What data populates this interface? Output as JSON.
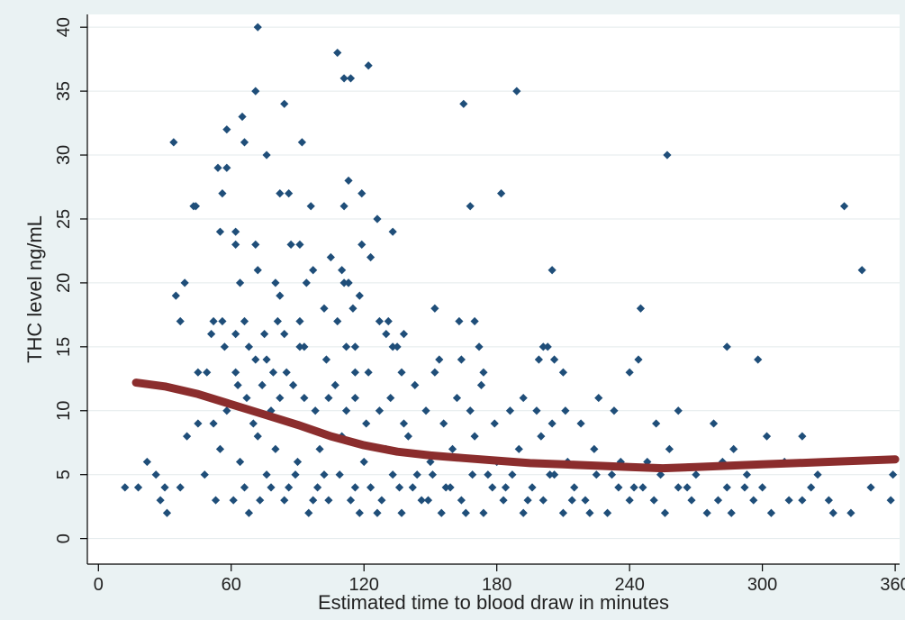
{
  "chart_data": {
    "type": "scatter",
    "title": "",
    "xlabel": "Estimated time to blood draw in minutes",
    "ylabel": "THC level ng/mL",
    "xlim": [
      -5,
      362
    ],
    "ylim": [
      -2,
      41
    ],
    "xticks": [
      0,
      60,
      120,
      180,
      240,
      300,
      360
    ],
    "yticks": [
      0,
      5,
      10,
      15,
      20,
      25,
      30,
      35,
      40
    ],
    "grid": "horizontal",
    "legend": "none",
    "colors": {
      "points": "#1f4e79",
      "fit": "#8b2d2d",
      "plot_bg": "#ffffff",
      "outer_bg": "#eaf2f3",
      "grid": "#e3eaeb"
    },
    "series": [
      {
        "kind": "points",
        "points": [
          [
            72,
            40
          ],
          [
            108,
            38
          ],
          [
            122,
            37
          ],
          [
            71,
            35
          ],
          [
            189,
            35
          ],
          [
            111,
            36
          ],
          [
            114,
            36
          ],
          [
            65,
            33
          ],
          [
            84,
            34
          ],
          [
            165,
            34
          ],
          [
            34,
            31
          ],
          [
            58,
            32
          ],
          [
            66,
            31
          ],
          [
            92,
            31
          ],
          [
            257,
            30
          ],
          [
            54,
            29
          ],
          [
            58,
            29
          ],
          [
            76,
            30
          ],
          [
            113,
            28
          ],
          [
            82,
            27
          ],
          [
            86,
            27
          ],
          [
            119,
            27
          ],
          [
            182,
            27
          ],
          [
            56,
            27
          ],
          [
            43,
            26
          ],
          [
            44,
            26
          ],
          [
            96,
            26
          ],
          [
            111,
            26
          ],
          [
            168,
            26
          ],
          [
            337,
            26
          ],
          [
            126,
            25
          ],
          [
            133,
            24
          ],
          [
            55,
            24
          ],
          [
            62,
            24
          ],
          [
            62,
            23
          ],
          [
            71,
            23
          ],
          [
            87,
            23
          ],
          [
            91,
            23
          ],
          [
            119,
            23
          ],
          [
            123,
            22
          ],
          [
            105,
            22
          ],
          [
            97,
            21
          ],
          [
            72,
            21
          ],
          [
            110,
            21
          ],
          [
            205,
            21
          ],
          [
            345,
            21
          ],
          [
            39,
            20
          ],
          [
            64,
            20
          ],
          [
            80,
            20
          ],
          [
            94,
            20
          ],
          [
            111,
            20
          ],
          [
            113,
            20
          ],
          [
            113,
            20
          ],
          [
            118,
            19
          ],
          [
            35,
            19
          ],
          [
            82,
            19
          ],
          [
            102,
            18
          ],
          [
            115,
            18
          ],
          [
            152,
            18
          ],
          [
            245,
            18
          ],
          [
            37,
            17
          ],
          [
            52,
            17
          ],
          [
            56,
            17
          ],
          [
            66,
            17
          ],
          [
            81,
            17
          ],
          [
            91,
            17
          ],
          [
            108,
            17
          ],
          [
            127,
            17
          ],
          [
            131,
            17
          ],
          [
            163,
            17
          ],
          [
            170,
            17
          ],
          [
            51,
            16
          ],
          [
            62,
            16
          ],
          [
            75,
            16
          ],
          [
            84,
            16
          ],
          [
            130,
            16
          ],
          [
            138,
            16
          ],
          [
            57,
            15
          ],
          [
            68,
            15
          ],
          [
            91,
            15
          ],
          [
            93,
            15
          ],
          [
            112,
            15
          ],
          [
            116,
            15
          ],
          [
            133,
            15
          ],
          [
            135,
            15
          ],
          [
            172,
            15
          ],
          [
            201,
            15
          ],
          [
            203,
            15
          ],
          [
            284,
            15
          ],
          [
            103,
            14
          ],
          [
            71,
            14
          ],
          [
            76,
            14
          ],
          [
            154,
            14
          ],
          [
            164,
            14
          ],
          [
            199,
            14
          ],
          [
            206,
            14
          ],
          [
            244,
            14
          ],
          [
            298,
            14
          ],
          [
            45,
            13
          ],
          [
            49,
            13
          ],
          [
            62,
            13
          ],
          [
            79,
            13
          ],
          [
            85,
            13
          ],
          [
            116,
            13
          ],
          [
            122,
            13
          ],
          [
            137,
            13
          ],
          [
            152,
            13
          ],
          [
            174,
            13
          ],
          [
            210,
            13
          ],
          [
            240,
            13
          ],
          [
            40,
            8
          ],
          [
            45,
            9
          ],
          [
            52,
            9
          ],
          [
            58,
            10
          ],
          [
            63,
            12
          ],
          [
            67,
            11
          ],
          [
            70,
            9
          ],
          [
            74,
            12
          ],
          [
            78,
            10
          ],
          [
            82,
            11
          ],
          [
            88,
            12
          ],
          [
            93,
            11
          ],
          [
            98,
            10
          ],
          [
            104,
            11
          ],
          [
            107,
            12
          ],
          [
            112,
            10
          ],
          [
            116,
            11
          ],
          [
            121,
            9
          ],
          [
            127,
            10
          ],
          [
            132,
            11
          ],
          [
            138,
            9
          ],
          [
            143,
            12
          ],
          [
            148,
            10
          ],
          [
            156,
            9
          ],
          [
            162,
            11
          ],
          [
            168,
            10
          ],
          [
            173,
            12
          ],
          [
            179,
            9
          ],
          [
            186,
            10
          ],
          [
            192,
            11
          ],
          [
            198,
            10
          ],
          [
            205,
            9
          ],
          [
            211,
            10
          ],
          [
            218,
            9
          ],
          [
            226,
            11
          ],
          [
            233,
            10
          ],
          [
            252,
            9
          ],
          [
            262,
            10
          ],
          [
            278,
            9
          ],
          [
            287,
            7
          ],
          [
            302,
            8
          ],
          [
            318,
            8
          ],
          [
            55,
            7
          ],
          [
            64,
            6
          ],
          [
            72,
            8
          ],
          [
            80,
            7
          ],
          [
            90,
            6
          ],
          [
            100,
            7
          ],
          [
            110,
            8
          ],
          [
            120,
            6
          ],
          [
            130,
            7
          ],
          [
            140,
            8
          ],
          [
            150,
            6
          ],
          [
            160,
            7
          ],
          [
            170,
            8
          ],
          [
            180,
            6
          ],
          [
            190,
            7
          ],
          [
            200,
            8
          ],
          [
            212,
            6
          ],
          [
            224,
            7
          ],
          [
            236,
            6
          ],
          [
            248,
            6
          ],
          [
            258,
            7
          ],
          [
            270,
            5
          ],
          [
            282,
            6
          ],
          [
            293,
            5
          ],
          [
            310,
            6
          ],
          [
            325,
            5
          ],
          [
            22,
            6
          ],
          [
            18,
            4
          ],
          [
            26,
            5
          ],
          [
            30,
            4
          ],
          [
            28,
            3
          ],
          [
            37,
            4
          ],
          [
            48,
            5
          ],
          [
            53,
            3
          ],
          [
            61,
            3
          ],
          [
            66,
            4
          ],
          [
            73,
            3
          ],
          [
            78,
            4
          ],
          [
            84,
            3
          ],
          [
            89,
            5
          ],
          [
            95,
            2
          ],
          [
            99,
            4
          ],
          [
            104,
            3
          ],
          [
            109,
            5
          ],
          [
            114,
            3
          ],
          [
            118,
            2
          ],
          [
            123,
            4
          ],
          [
            128,
            3
          ],
          [
            133,
            5
          ],
          [
            137,
            2
          ],
          [
            142,
            4
          ],
          [
            146,
            3
          ],
          [
            151,
            5
          ],
          [
            155,
            2
          ],
          [
            159,
            4
          ],
          [
            164,
            3
          ],
          [
            169,
            5
          ],
          [
            174,
            2
          ],
          [
            178,
            4
          ],
          [
            183,
            3
          ],
          [
            187,
            5
          ],
          [
            192,
            2
          ],
          [
            196,
            4
          ],
          [
            201,
            3
          ],
          [
            206,
            5
          ],
          [
            210,
            2
          ],
          [
            215,
            4
          ],
          [
            220,
            3
          ],
          [
            225,
            5
          ],
          [
            230,
            2
          ],
          [
            235,
            4
          ],
          [
            240,
            3
          ],
          [
            246,
            4
          ],
          [
            251,
            3
          ],
          [
            256,
            2
          ],
          [
            262,
            4
          ],
          [
            268,
            3
          ],
          [
            275,
            2
          ],
          [
            280,
            3
          ],
          [
            286,
            2
          ],
          [
            292,
            4
          ],
          [
            296,
            3
          ],
          [
            304,
            2
          ],
          [
            312,
            3
          ],
          [
            322,
            4
          ],
          [
            330,
            3
          ],
          [
            340,
            2
          ],
          [
            349,
            4
          ],
          [
            358,
            3
          ],
          [
            359,
            5
          ],
          [
            12,
            4
          ],
          [
            31,
            2
          ],
          [
            68,
            2
          ],
          [
            76,
            5
          ],
          [
            86,
            4
          ],
          [
            97,
            3
          ],
          [
            102,
            5
          ],
          [
            116,
            4
          ],
          [
            126,
            2
          ],
          [
            136,
            4
          ],
          [
            144,
            5
          ],
          [
            149,
            3
          ],
          [
            157,
            4
          ],
          [
            166,
            2
          ],
          [
            176,
            5
          ],
          [
            184,
            4
          ],
          [
            194,
            3
          ],
          [
            204,
            5
          ],
          [
            214,
            3
          ],
          [
            222,
            2
          ],
          [
            232,
            5
          ],
          [
            242,
            4
          ],
          [
            254,
            5
          ],
          [
            266,
            4
          ],
          [
            284,
            4
          ],
          [
            300,
            4
          ],
          [
            318,
            3
          ],
          [
            332,
            2
          ]
        ]
      },
      {
        "kind": "fit",
        "points": [
          [
            17,
            12.2
          ],
          [
            30,
            11.9
          ],
          [
            45,
            11.3
          ],
          [
            60,
            10.5
          ],
          [
            75,
            9.7
          ],
          [
            90,
            8.9
          ],
          [
            105,
            8.0
          ],
          [
            120,
            7.3
          ],
          [
            135,
            6.8
          ],
          [
            150,
            6.5
          ],
          [
            165,
            6.3
          ],
          [
            180,
            6.1
          ],
          [
            195,
            5.9
          ],
          [
            210,
            5.8
          ],
          [
            225,
            5.7
          ],
          [
            240,
            5.6
          ],
          [
            255,
            5.5
          ],
          [
            270,
            5.6
          ],
          [
            285,
            5.7
          ],
          [
            300,
            5.8
          ],
          [
            315,
            5.9
          ],
          [
            330,
            6.0
          ],
          [
            345,
            6.1
          ],
          [
            360,
            6.2
          ]
        ]
      }
    ]
  }
}
